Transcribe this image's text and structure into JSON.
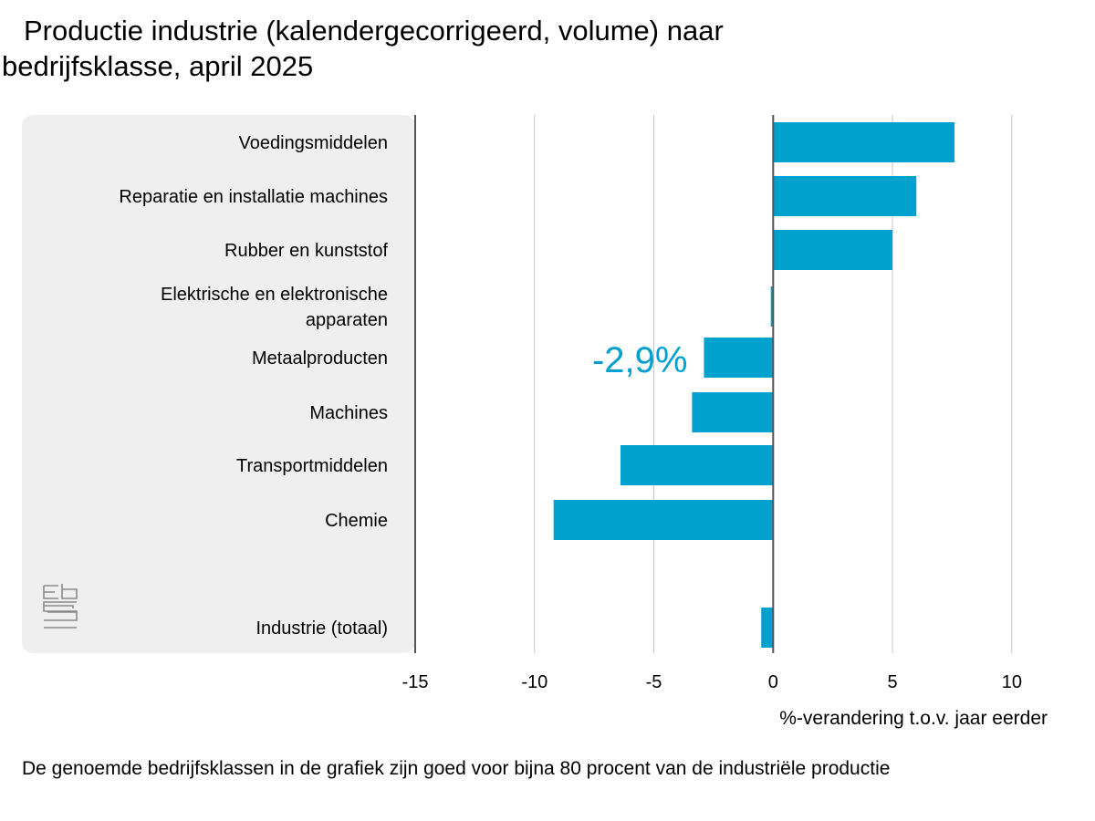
{
  "title": {
    "line1": "Productie industrie (kalendergecorrigeerd, volume) naar",
    "line2": "bedrijfsklasse, april 2025"
  },
  "footnote": "De genoemde bedrijfsklassen in de grafiek zijn goed voor bijna 80 procent van de industriële productie",
  "logo": {
    "icon": "cbs-logo-icon"
  },
  "colors": {
    "bar": "#00a1cd",
    "highlight_text": "#009fd0",
    "panel": "#efefef",
    "grid": "#c8c8c8",
    "axis": "#555555"
  },
  "chart_data": {
    "type": "bar",
    "orientation": "horizontal",
    "categories": [
      [
        "Voedingsmiddelen"
      ],
      [
        "Reparatie en installatie machines"
      ],
      [
        "Rubber en kunststof"
      ],
      [
        "Elektrische en elektronische",
        "apparaten"
      ],
      [
        "Metaalproducten"
      ],
      [
        "Machines"
      ],
      [
        "Transportmiddelen"
      ],
      [
        "Chemie"
      ],
      [
        "Industrie (totaal)"
      ]
    ],
    "values": [
      7.6,
      6.0,
      5.0,
      -0.1,
      -2.9,
      -3.4,
      -6.4,
      -9.2,
      -0.5
    ],
    "xlim": [
      -15,
      11
    ],
    "xticks": [
      "-15",
      "-10",
      "-5",
      "0",
      "5",
      "10"
    ],
    "xlabel": "%-verandering t.o.v. jaar eerder",
    "grid": true,
    "annotation": {
      "text": "-2,9%",
      "category_index": 4
    }
  }
}
